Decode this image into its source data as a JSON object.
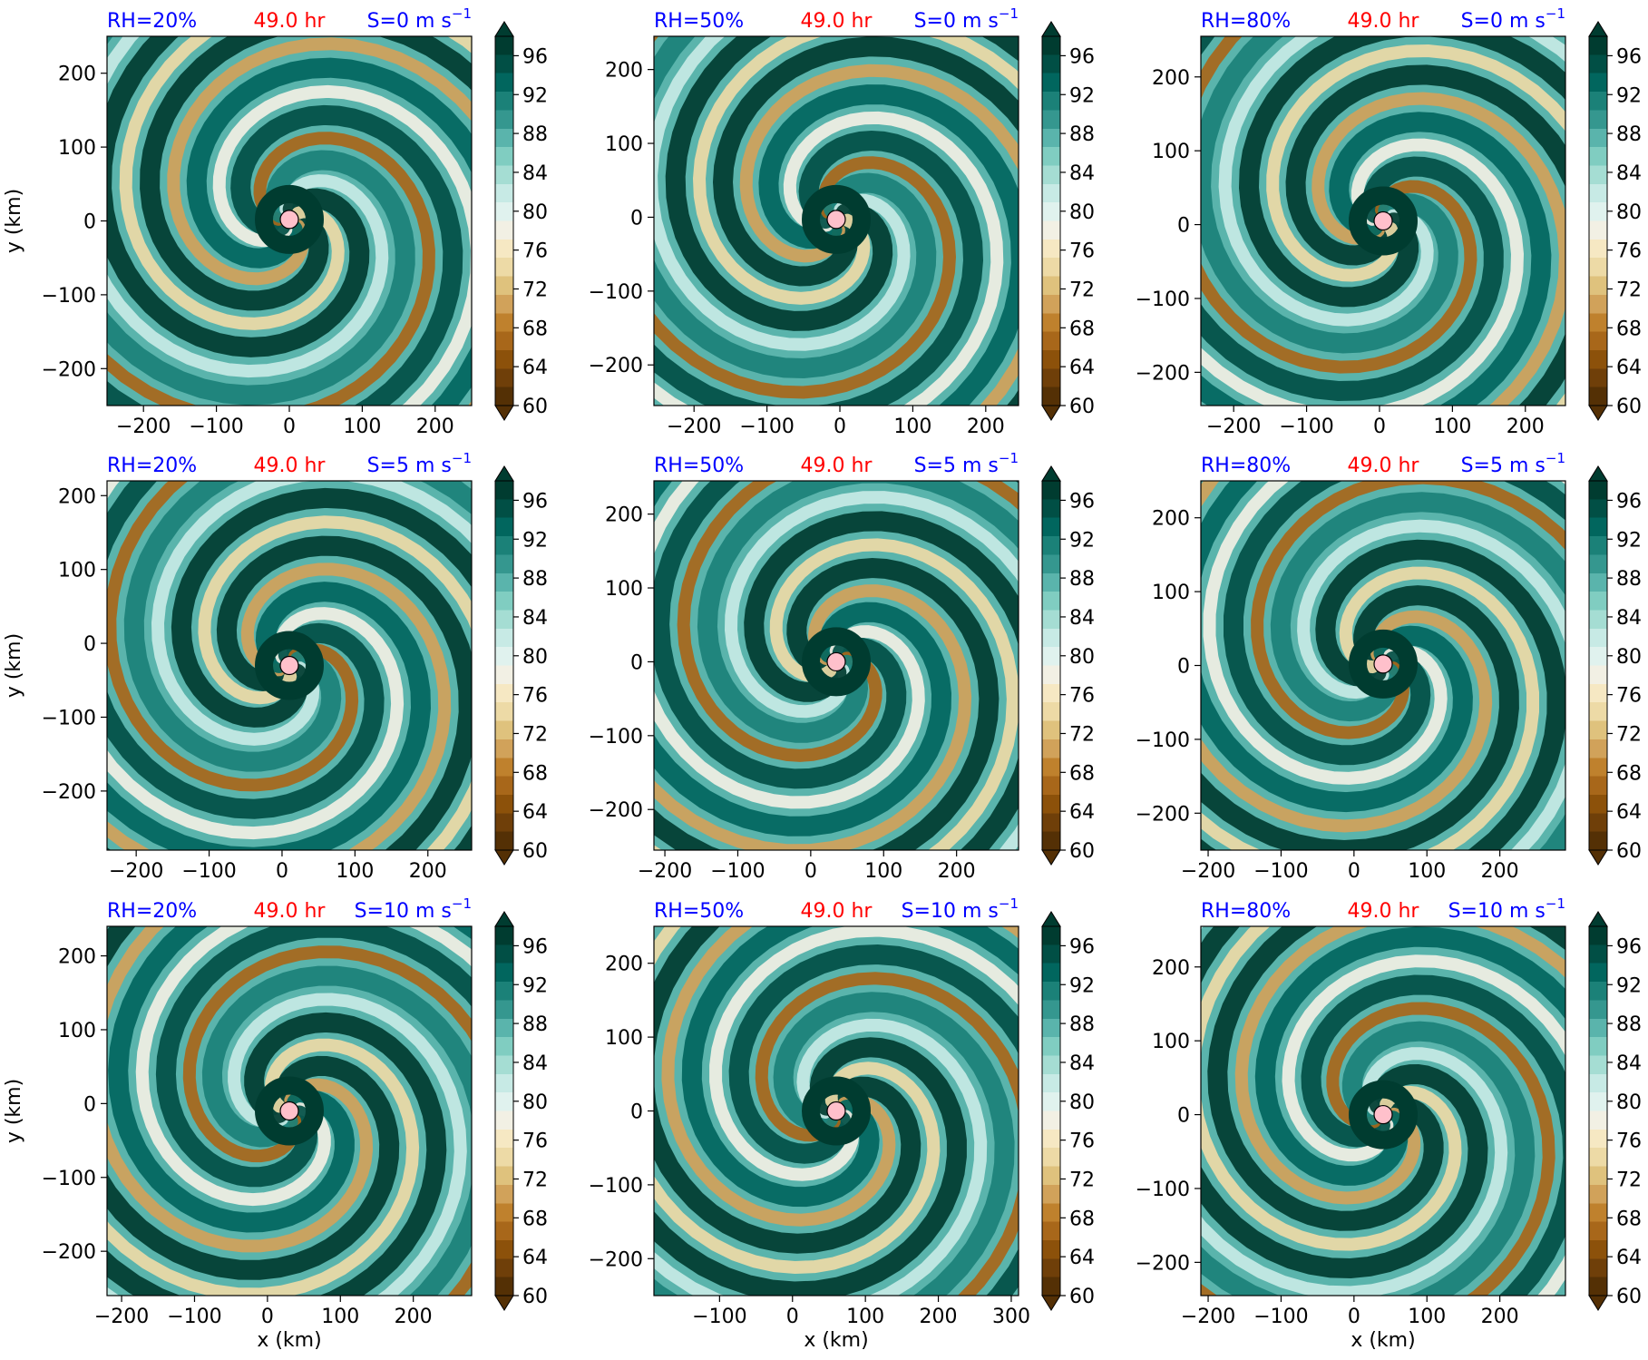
{
  "colors": {
    "rh_label": "#0000ff",
    "time_label": "#ff0000",
    "shear_label": "#0000ff",
    "center_marker": "#ffc0cb",
    "colormap": [
      "#543005",
      "#6f3f09",
      "#8c510a",
      "#a8671a",
      "#bf812d",
      "#d1a25a",
      "#dfc27d",
      "#eddaa6",
      "#f6e8c3",
      "#f2f0e4",
      "#e0f2ee",
      "#c7eae5",
      "#a5ddd3",
      "#80cdc1",
      "#5ab4ac",
      "#35978f",
      "#1b8178",
      "#01665e",
      "#014f45",
      "#003c30"
    ]
  },
  "labels": {
    "ylabel": "y (km)",
    "xlabel": "x (km)",
    "time": "49.0 hr",
    "unit_sup": "−1"
  },
  "colorbar": {
    "ticks": [
      "96",
      "92",
      "88",
      "84",
      "80",
      "76",
      "72",
      "68",
      "64",
      "60"
    ]
  },
  "chart_data": [
    {
      "type": "heatmap",
      "row": 0,
      "col": 0,
      "rh": "RH=20%",
      "shear_prefix": "S=0 m s",
      "xticks": [
        "−200",
        "−100",
        "0",
        "100",
        "200"
      ],
      "yticks": [
        "200",
        "100",
        "0",
        "−100",
        "−200"
      ],
      "xlim": [
        -250,
        250
      ],
      "ylim": [
        -250,
        250
      ],
      "center": [
        0,
        2
      ],
      "field_range": [
        60,
        98
      ]
    },
    {
      "type": "heatmap",
      "row": 0,
      "col": 1,
      "rh": "RH=50%",
      "shear_prefix": "S=0 m s",
      "xticks": [
        "−200",
        "−100",
        "0",
        "100",
        "200"
      ],
      "yticks": [
        "200",
        "100",
        "0",
        "−100",
        "−200"
      ],
      "xlim": [
        -255,
        245
      ],
      "ylim": [
        -255,
        245
      ],
      "center": [
        -5,
        -3
      ],
      "field_range": [
        60,
        98
      ]
    },
    {
      "type": "heatmap",
      "row": 0,
      "col": 2,
      "rh": "RH=80%",
      "shear_prefix": "S=0 m s",
      "xticks": [
        "−200",
        "−100",
        "0",
        "100",
        "200"
      ],
      "yticks": [
        "200",
        "100",
        "0",
        "−100",
        "−200"
      ],
      "xlim": [
        -245,
        255
      ],
      "ylim": [
        -245,
        255
      ],
      "center": [
        5,
        5
      ],
      "field_range": [
        60,
        98
      ]
    },
    {
      "type": "heatmap",
      "row": 1,
      "col": 0,
      "rh": "RH=20%",
      "shear_prefix": "S=5 m s",
      "xticks": [
        "−200",
        "−100",
        "0",
        "100",
        "200"
      ],
      "yticks": [
        "200",
        "100",
        "0",
        "−100",
        "−200"
      ],
      "xlim": [
        -240,
        260
      ],
      "ylim": [
        -280,
        220
      ],
      "center": [
        10,
        -30
      ],
      "field_range": [
        60,
        98
      ]
    },
    {
      "type": "heatmap",
      "row": 1,
      "col": 1,
      "rh": "RH=50%",
      "shear_prefix": "S=5 m s",
      "xticks": [
        "−200",
        "−100",
        "0",
        "100",
        "200"
      ],
      "yticks": [
        "200",
        "100",
        "0",
        "−100",
        "−200"
      ],
      "xlim": [
        -215,
        285
      ],
      "ylim": [
        -255,
        245
      ],
      "center": [
        35,
        0
      ],
      "field_range": [
        60,
        98
      ]
    },
    {
      "type": "heatmap",
      "row": 1,
      "col": 2,
      "rh": "RH=80%",
      "shear_prefix": "S=5 m s",
      "xticks": [
        "−200",
        "−100",
        "0",
        "100",
        "200"
      ],
      "yticks": [
        "200",
        "100",
        "0",
        "−100",
        "−200"
      ],
      "xlim": [
        -210,
        290
      ],
      "ylim": [
        -250,
        250
      ],
      "center": [
        40,
        2
      ],
      "field_range": [
        60,
        98
      ]
    },
    {
      "type": "heatmap",
      "row": 2,
      "col": 0,
      "rh": "RH=20%",
      "shear_prefix": "S=10 m s",
      "xticks": [
        "−200",
        "−100",
        "0",
        "100",
        "200"
      ],
      "yticks": [
        "200",
        "100",
        "0",
        "−100",
        "−200"
      ],
      "xlim": [
        -220,
        280
      ],
      "ylim": [
        -260,
        240
      ],
      "center": [
        30,
        -10
      ],
      "field_range": [
        60,
        98
      ]
    },
    {
      "type": "heatmap",
      "row": 2,
      "col": 1,
      "rh": "RH=50%",
      "shear_prefix": "S=10 m s",
      "xticks": [
        "−100",
        "0",
        "100",
        "200",
        "300"
      ],
      "yticks": [
        "200",
        "100",
        "0",
        "−100",
        "−200"
      ],
      "xlim": [
        -190,
        310
      ],
      "ylim": [
        -250,
        250
      ],
      "center": [
        60,
        0
      ],
      "field_range": [
        60,
        98
      ]
    },
    {
      "type": "heatmap",
      "row": 2,
      "col": 2,
      "rh": "RH=80%",
      "shear_prefix": "S=10 m s",
      "xticks": [
        "−200",
        "−100",
        "0",
        "100",
        "200"
      ],
      "yticks": [
        "200",
        "100",
        "0",
        "−100",
        "−200"
      ],
      "xlim": [
        -210,
        290
      ],
      "ylim": [
        -245,
        255
      ],
      "center": [
        40,
        0
      ],
      "field_range": [
        60,
        98
      ]
    }
  ]
}
